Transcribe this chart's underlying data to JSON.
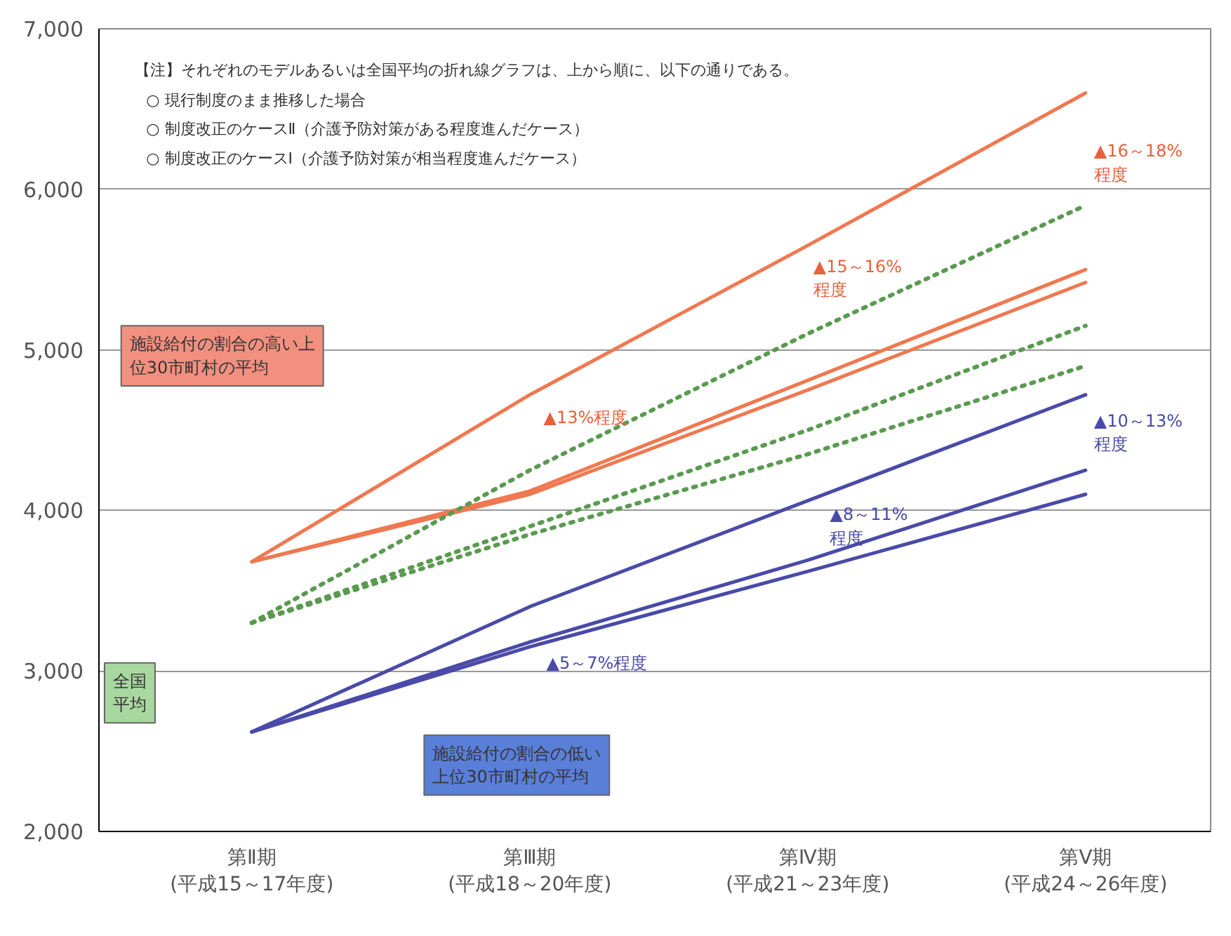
{
  "chart_data": {
    "type": "line",
    "categories": [
      "第Ⅱ期\n(平成15～17年度)",
      "第Ⅲ期\n(平成18～20年度)",
      "第Ⅳ期\n(平成21～23年度)",
      "第Ⅴ期\n(平成24～26年度)"
    ],
    "series": [
      {
        "color": "#f07850",
        "values": [
          3680,
          4720,
          5650,
          6600
        ],
        "line_style": "solid"
      },
      {
        "color": "#f07850",
        "values": [
          3680,
          4120,
          4810,
          5500
        ],
        "line_style": "solid"
      },
      {
        "color": "#f07850",
        "values": [
          3680,
          4100,
          4750,
          5420
        ],
        "line_style": "solid"
      },
      {
        "color": "#5a9a50",
        "values": [
          3300,
          4250,
          5100,
          5900
        ],
        "line_style": "dotted"
      },
      {
        "color": "#5a9a50",
        "values": [
          3300,
          3900,
          4500,
          5150
        ],
        "line_style": "dotted"
      },
      {
        "color": "#5a9a50",
        "values": [
          3300,
          3850,
          4350,
          4900
        ],
        "line_style": "dotted"
      },
      {
        "color": "#4a4aa8",
        "values": [
          2620,
          3400,
          4060,
          4720
        ],
        "line_style": "solid"
      },
      {
        "color": "#4a4aa8",
        "values": [
          2620,
          3180,
          3690,
          4250
        ],
        "line_style": "solid"
      },
      {
        "color": "#4a4aa8",
        "values": [
          2620,
          3150,
          3620,
          4100
        ],
        "line_style": "solid"
      }
    ],
    "ylim": [
      2000,
      7000
    ],
    "yticks": [
      {
        "value": 2000,
        "label": "2,000"
      },
      {
        "value": 3000,
        "label": "3,000"
      },
      {
        "value": 4000,
        "label": "4,000"
      },
      {
        "value": 5000,
        "label": "5,000"
      },
      {
        "value": 6000,
        "label": "6,000"
      },
      {
        "value": 7000,
        "label": "7,000"
      }
    ],
    "grid": "y",
    "annotations": [
      "【注】それぞれのモデルあるいは全国平均の折れ線グラフは、上から順に、以下の通りである。",
      "○ 現行制度のまま推移した場合",
      "○ 制度改正のケースⅡ（介護予防対策がある程度進んだケース）",
      "○ 制度改正のケースⅠ（介護予防対策が相当程度進んだケース）",
      "施設給付の割合の高い上位30市町村の平均",
      "全国平均",
      "施設給付の割合の低い上位30市町村の平均",
      "▲13%程度",
      "▲15～16%\n程度",
      "▲16～18%\n程度",
      "▲5～7%程度",
      "▲8～11%\n程度",
      "▲10～13%\n程度"
    ]
  }
}
